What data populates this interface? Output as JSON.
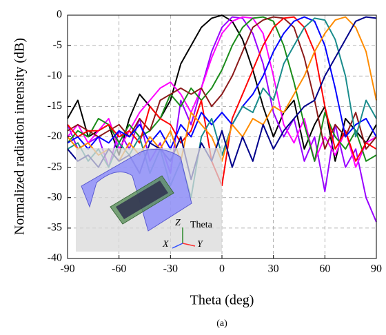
{
  "chart_data": {
    "type": "line",
    "xlabel": "Theta (deg)",
    "ylabel": "Normalized radiation intensity (dB)",
    "caption": "(a)",
    "annotations": [
      "Z",
      "Theta",
      "X",
      "Y"
    ],
    "xlim": [
      -90,
      90
    ],
    "xticks": [
      -90,
      -60,
      -30,
      0,
      30,
      60,
      90
    ],
    "ylim": [
      -40,
      0
    ],
    "yticks": [
      0,
      -5,
      -10,
      -15,
      -20,
      -25,
      -30,
      -35,
      -40
    ],
    "grid": true,
    "x": [
      -90,
      -84,
      -78,
      -72,
      -66,
      -60,
      -54,
      -48,
      -42,
      -36,
      -30,
      -24,
      -18,
      -12,
      -6,
      0,
      6,
      12,
      18,
      24,
      30,
      36,
      42,
      48,
      54,
      60,
      66,
      72,
      78,
      84,
      90
    ],
    "series": [
      {
        "color": "#000000",
        "values": [
          -17,
          -14,
          -20,
          -19,
          -18,
          -23,
          -17,
          -13,
          -15,
          -17,
          -14,
          -8,
          -5,
          -2,
          -0.5,
          0,
          -1,
          -4,
          -9,
          -15,
          -20,
          -16,
          -14,
          -22,
          -18,
          -15,
          -24,
          -17,
          -19,
          -21,
          -18
        ]
      },
      {
        "color": "#9900ff",
        "values": [
          -18,
          -22,
          -21,
          -20,
          -25,
          -19,
          -22,
          -17,
          -24,
          -21,
          -26,
          -14,
          -18,
          -12,
          -6,
          -2,
          -0.3,
          -0.5,
          -3,
          -8,
          -16,
          -20,
          -17,
          -24,
          -20,
          -29,
          -18,
          -25,
          -22,
          -30,
          -34
        ]
      },
      {
        "color": "#ff00ff",
        "values": [
          -20,
          -18,
          -21,
          -19,
          -17,
          -22,
          -19,
          -16,
          -14,
          -12,
          -11,
          -13,
          -16,
          -12,
          -7,
          -3,
          -1,
          -0.3,
          -0.5,
          -3,
          -10,
          -18,
          -21,
          -17,
          -24,
          -20,
          -23,
          -19,
          -25,
          -21,
          -20
        ]
      },
      {
        "color": "#1a8c1a",
        "values": [
          -21,
          -19,
          -20,
          -17,
          -18,
          -21,
          -18,
          -20,
          -19,
          -17,
          -13,
          -15,
          -12,
          -14,
          -12,
          -9,
          -5,
          -2,
          -0.5,
          -0.3,
          -1,
          -5,
          -11,
          -18,
          -24,
          -16,
          -20,
          -22,
          -19,
          -24,
          -23
        ]
      },
      {
        "color": "#8b1a1a",
        "values": [
          -19,
          -18,
          -19,
          -20,
          -19,
          -18,
          -20,
          -17,
          -19,
          -14,
          -13,
          -12,
          -13,
          -12,
          -15,
          -13,
          -10,
          -6,
          -2,
          -0.8,
          -0.3,
          -0.5,
          -2,
          -7,
          -14,
          -22,
          -18,
          -20,
          -16,
          -22,
          -20
        ]
      },
      {
        "color": "#ff0000",
        "values": [
          -18,
          -20,
          -19,
          -19,
          -18,
          -20,
          -19,
          -21,
          -15,
          -17,
          -18,
          -21,
          -19,
          -14,
          -24,
          -28,
          -17,
          -13,
          -9,
          -5,
          -2,
          -0.5,
          -0.3,
          -2,
          -6,
          -15,
          -22,
          -19,
          -24,
          -21,
          -22
        ]
      },
      {
        "color": "#0000ff",
        "values": [
          -21,
          -20,
          -22,
          -20,
          -21,
          -19,
          -20,
          -18,
          -21,
          -19,
          -22,
          -18,
          -20,
          -16,
          -18,
          -16,
          -18,
          -15,
          -13,
          -10,
          -6,
          -3,
          -1,
          -0.3,
          -1,
          -5,
          -12,
          -20,
          -18,
          -17,
          -20
        ]
      },
      {
        "color": "#1a8c8c",
        "values": [
          -22,
          -21,
          -24,
          -22,
          -25,
          -21,
          -23,
          -20,
          -26,
          -22,
          -28,
          -24,
          -30,
          -20,
          -17,
          -23,
          -18,
          -15,
          -16,
          -12,
          -14,
          -8,
          -5,
          -2,
          -0.5,
          -0.8,
          -4,
          -10,
          -20,
          -14,
          -17
        ]
      },
      {
        "color": "#ff8c00",
        "values": [
          -20,
          -22,
          -21,
          -23,
          -22,
          -24,
          -21,
          -23,
          -20,
          -22,
          -19,
          -24,
          -16,
          -18,
          -20,
          -24,
          -18,
          -20,
          -17,
          -18,
          -15,
          -16,
          -13,
          -10,
          -6,
          -3,
          -0.8,
          -0.3,
          -2,
          -6,
          -14
        ]
      },
      {
        "color": "#00008b",
        "values": [
          -22,
          -24,
          -23,
          -25,
          -22,
          -24,
          -23,
          -26,
          -21,
          -22,
          -24,
          -20,
          -27,
          -21,
          -24,
          -19,
          -25,
          -20,
          -24,
          -18,
          -22,
          -19,
          -17,
          -15,
          -14,
          -10,
          -7,
          -4,
          -1,
          -0.3,
          -0.5
        ]
      }
    ]
  }
}
